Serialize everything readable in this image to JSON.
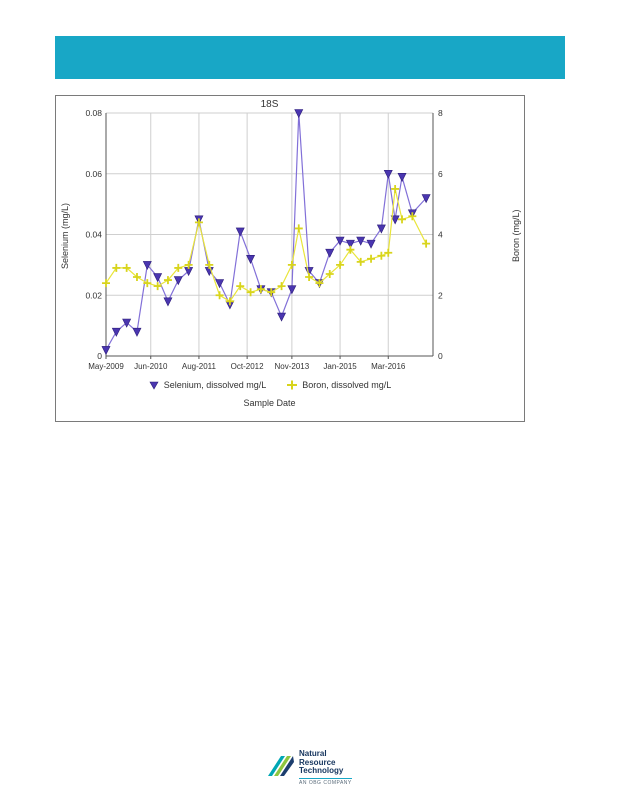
{
  "header": {
    "color": "#18a7c6"
  },
  "chart_data": {
    "type": "line",
    "title": "18S",
    "xlabel": "Sample Date",
    "ylabel_left": "Selenium (mg/L)",
    "ylabel_right": "Boron (mg/L)",
    "x_tick_labels": [
      "May-2009",
      "Jun-2010",
      "Aug-2011",
      "Oct-2012",
      "Nov-2013",
      "Jan-2015",
      "Mar-2016"
    ],
    "x_tick_positions": [
      0,
      13,
      27,
      41,
      54,
      68,
      82
    ],
    "x_range": [
      0,
      95
    ],
    "grid": true,
    "legend_position": "bottom",
    "left_axis": {
      "min": 0,
      "max": 0.08,
      "ticks": [
        0,
        0.02,
        0.04,
        0.06,
        0.08
      ],
      "tick_labels": [
        "0",
        "0.02",
        "0.04",
        "0.06",
        "0.08"
      ]
    },
    "right_axis": {
      "min": 0,
      "max": 8,
      "ticks": [
        0,
        2,
        4,
        6,
        8
      ],
      "tick_labels": [
        "0",
        "2",
        "4",
        "6",
        "8"
      ]
    },
    "series": [
      {
        "name": "Selenium, dissolved mg/L",
        "axis": "left",
        "marker": "triangle-down",
        "line_color": "#8270d8",
        "marker_color": "#4a36b0",
        "x_months": [
          0,
          3,
          6,
          9,
          12,
          15,
          18,
          21,
          24,
          27,
          30,
          33,
          36,
          39,
          42,
          45,
          48,
          51,
          54,
          56,
          59,
          62,
          65,
          68,
          71,
          74,
          77,
          80,
          82,
          84,
          86,
          89,
          93
        ],
        "values": [
          0.002,
          0.008,
          0.011,
          0.008,
          0.03,
          0.026,
          0.018,
          0.025,
          0.028,
          0.045,
          0.028,
          0.024,
          0.017,
          0.041,
          0.032,
          0.022,
          0.021,
          0.013,
          0.022,
          0.08,
          0.028,
          0.024,
          0.034,
          0.038,
          0.037,
          0.038,
          0.037,
          0.042,
          0.06,
          0.045,
          0.059,
          0.047,
          0.052
        ]
      },
      {
        "name": "Boron, dissolved mg/L",
        "axis": "right",
        "marker": "plus",
        "line_color": "#e9e53b",
        "marker_color": "#d8d41c",
        "x_months": [
          0,
          3,
          6,
          9,
          12,
          15,
          18,
          21,
          24,
          27,
          30,
          33,
          36,
          39,
          42,
          45,
          48,
          51,
          54,
          56,
          59,
          62,
          65,
          68,
          71,
          74,
          77,
          80,
          82,
          84,
          86,
          89,
          93
        ],
        "values": [
          2.4,
          2.9,
          2.9,
          2.6,
          2.4,
          2.3,
          2.5,
          2.9,
          3.0,
          4.4,
          3.0,
          2.0,
          1.8,
          2.3,
          2.1,
          2.2,
          2.1,
          2.3,
          3.0,
          4.2,
          2.6,
          2.4,
          2.7,
          3.0,
          3.5,
          3.1,
          3.2,
          3.3,
          3.4,
          5.5,
          4.5,
          4.6,
          3.7
        ]
      }
    ]
  },
  "footer_logo": {
    "line1": "Natural",
    "line2": "Resource",
    "line3": "Technology",
    "tagline": "AN OBG COMPANY",
    "stripe_colors": [
      "#00a7b5",
      "#8dc63f",
      "#1c3e6e"
    ]
  }
}
